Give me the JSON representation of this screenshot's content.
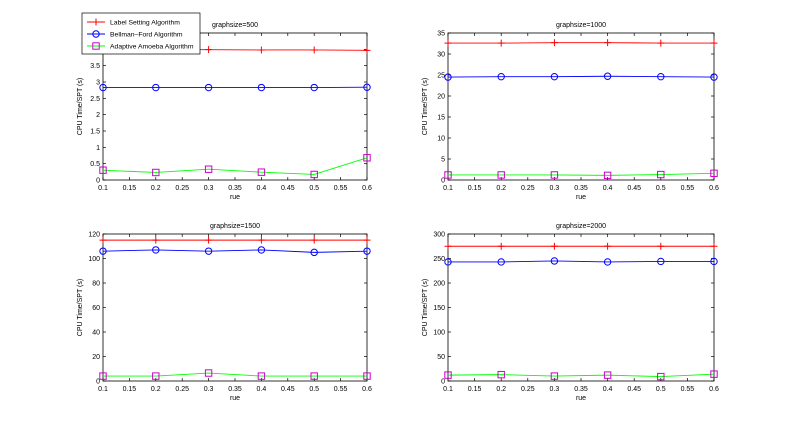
{
  "legend": {
    "entries": [
      {
        "label": "Label Setting Algorithm",
        "color": "#ff0000",
        "marker": "plus"
      },
      {
        "label": "Bellman–Ford Algorithm",
        "color": "#0000ff",
        "marker": "circle"
      },
      {
        "label": "Adaptive Amoeba Algorithm",
        "color": "#00ff00",
        "marker": "square",
        "marker_color": "#cc00cc"
      }
    ],
    "placement": "top-left"
  },
  "chart_data": [
    {
      "type": "line",
      "title": "graphsize=500",
      "xlabel": "rue",
      "ylabel": "CPU Time/SPT (s)",
      "x": [
        0.1,
        0.2,
        0.3,
        0.4,
        0.5,
        0.6
      ],
      "xlim": [
        0.1,
        0.6
      ],
      "ylim": [
        0,
        4.5
      ],
      "xticks": [
        "0.1",
        "0.15",
        "0.2",
        "0.25",
        "0.3",
        "0.35",
        "0.4",
        "0.45",
        "0.5",
        "0.55",
        "0.6"
      ],
      "yticks": [
        "0",
        "0.5",
        "1",
        "1.5",
        "2",
        "2.5",
        "3",
        "3.5",
        "4"
      ],
      "grid": false,
      "series": [
        {
          "name": "Label Setting Algorithm",
          "values": [
            4.0,
            4.0,
            3.99,
            3.98,
            3.98,
            3.97
          ]
        },
        {
          "name": "Bellman–Ford Algorithm",
          "values": [
            2.83,
            2.83,
            2.83,
            2.83,
            2.83,
            2.84
          ]
        },
        {
          "name": "Adaptive Amoeba Algorithm",
          "values": [
            0.3,
            0.23,
            0.33,
            0.24,
            0.17,
            0.68
          ]
        }
      ]
    },
    {
      "type": "line",
      "title": "graphsize=1000",
      "xlabel": "rue",
      "ylabel": "CPU Time/SPT (s)",
      "x": [
        0.1,
        0.2,
        0.3,
        0.4,
        0.5,
        0.6
      ],
      "xlim": [
        0.1,
        0.6
      ],
      "ylim": [
        0,
        35
      ],
      "xticks": [
        "0.1",
        "0.15",
        "0.2",
        "0.25",
        "0.3",
        "0.35",
        "0.4",
        "0.45",
        "0.5",
        "0.55",
        "0.6"
      ],
      "yticks": [
        "0",
        "5",
        "10",
        "15",
        "20",
        "25",
        "30",
        "35"
      ],
      "grid": false,
      "series": [
        {
          "name": "Label Setting Algorithm",
          "values": [
            32.6,
            32.6,
            32.7,
            32.7,
            32.6,
            32.6
          ]
        },
        {
          "name": "Bellman–Ford Algorithm",
          "values": [
            24.5,
            24.6,
            24.6,
            24.7,
            24.6,
            24.5
          ]
        },
        {
          "name": "Adaptive Amoeba Algorithm",
          "values": [
            1.2,
            1.2,
            1.2,
            1.1,
            1.3,
            1.6
          ]
        }
      ]
    },
    {
      "type": "line",
      "title": "graphsize=1500",
      "xlabel": "rue",
      "ylabel": "CPU Time/SPT (s)",
      "x": [
        0.1,
        0.2,
        0.3,
        0.4,
        0.5,
        0.6
      ],
      "xlim": [
        0.1,
        0.6
      ],
      "ylim": [
        0,
        120
      ],
      "xticks": [
        "0.1",
        "0.15",
        "0.2",
        "0.25",
        "0.3",
        "0.35",
        "0.4",
        "0.45",
        "0.5",
        "0.55",
        "0.6"
      ],
      "yticks": [
        "0",
        "20",
        "40",
        "60",
        "80",
        "100",
        "120"
      ],
      "grid": false,
      "series": [
        {
          "name": "Label Setting Algorithm",
          "values": [
            115,
            115,
            115,
            115,
            115,
            115
          ]
        },
        {
          "name": "Bellman–Ford Algorithm",
          "values": [
            106,
            107,
            106,
            107,
            105,
            106
          ]
        },
        {
          "name": "Adaptive Amoeba Algorithm",
          "values": [
            4,
            4,
            6.5,
            4,
            4,
            4
          ]
        }
      ]
    },
    {
      "type": "line",
      "title": "graphsize=2000",
      "xlabel": "rue",
      "ylabel": "CPU Time/SPT (s)",
      "x": [
        0.1,
        0.2,
        0.3,
        0.4,
        0.5,
        0.6
      ],
      "xlim": [
        0.1,
        0.6
      ],
      "ylim": [
        0,
        300
      ],
      "xticks": [
        "0.1",
        "0.15",
        "0.2",
        "0.25",
        "0.3",
        "0.35",
        "0.4",
        "0.45",
        "0.5",
        "0.55",
        "0.6"
      ],
      "yticks": [
        "0",
        "50",
        "100",
        "150",
        "200",
        "250",
        "300"
      ],
      "grid": false,
      "series": [
        {
          "name": "Label Setting Algorithm",
          "values": [
            275,
            275,
            275,
            275,
            275,
            275
          ]
        },
        {
          "name": "Bellman–Ford Algorithm",
          "values": [
            243,
            243,
            245,
            243,
            244,
            244
          ]
        },
        {
          "name": "Adaptive Amoeba Algorithm",
          "values": [
            12,
            13,
            10,
            12,
            9,
            14
          ]
        }
      ]
    }
  ]
}
